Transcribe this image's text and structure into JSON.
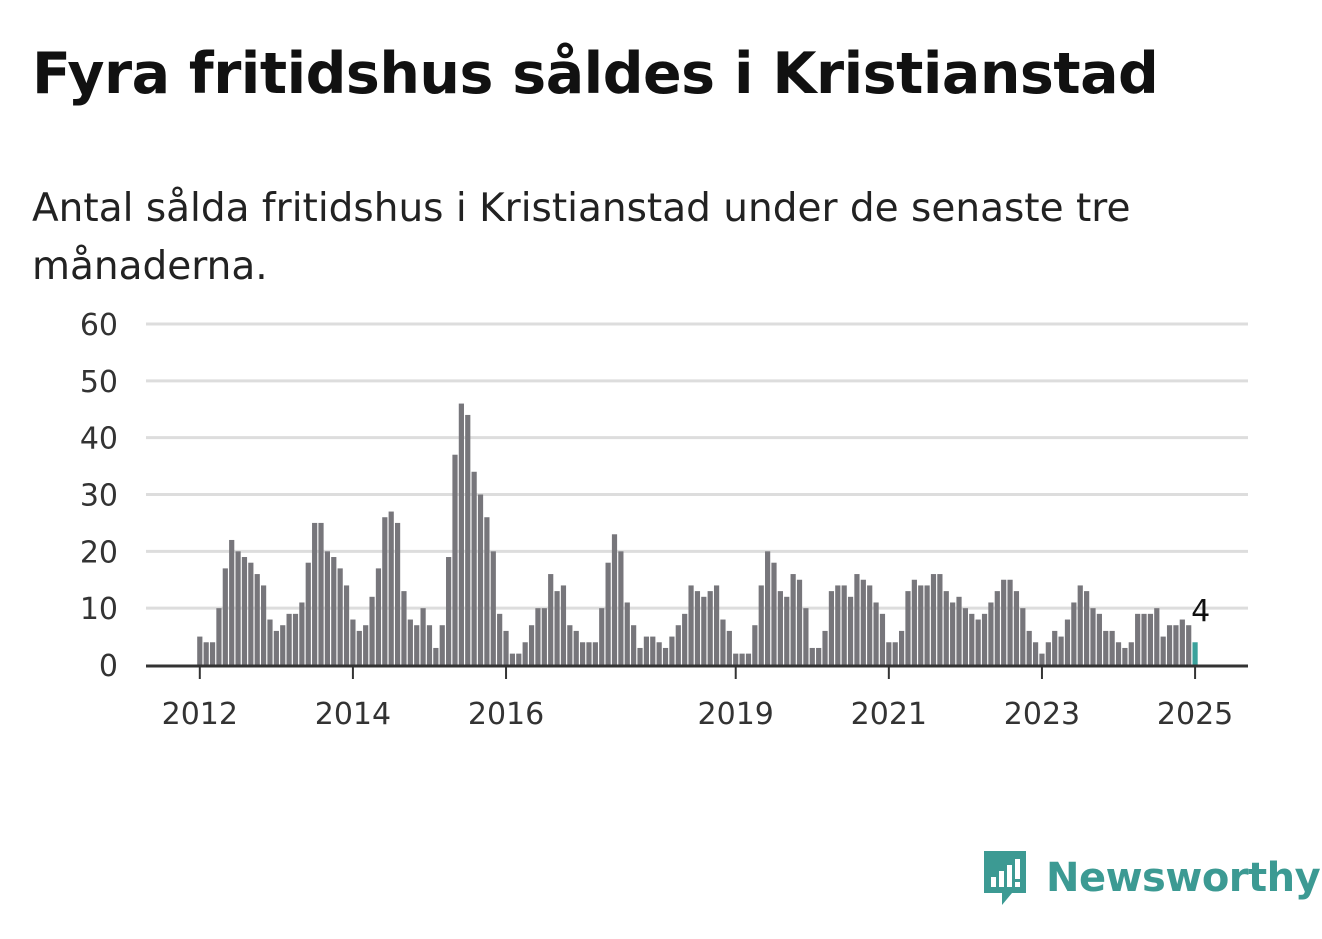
{
  "title": "Fyra fritidshus såldes i Kristianstad",
  "subtitle": "Antal sålda fritidshus i Kristianstad under de senaste tre månaderna.",
  "brand": {
    "name": "Newsworthy",
    "icon": "newsworthy-logo-icon",
    "color": "#3c9a93"
  },
  "colors": {
    "bar": "#77767b",
    "highlight": "#3aa19b",
    "grid": "#dddddd",
    "baseline": "#333333"
  },
  "chart_data": {
    "type": "bar",
    "title": "Fyra fritidshus såldes i Kristianstad",
    "subtitle": "Antal sålda fritidshus i Kristianstad under de senaste tre månaderna.",
    "xlabel": "",
    "ylabel": "",
    "ylim": [
      0,
      60
    ],
    "yticks": [
      0,
      10,
      20,
      30,
      40,
      50,
      60
    ],
    "grid": true,
    "x_ticks": [
      {
        "label": "2012",
        "date": "2012-01"
      },
      {
        "label": "2014",
        "date": "2014-01"
      },
      {
        "label": "2016",
        "date": "2016-01"
      },
      {
        "label": "2019",
        "date": "2019-01"
      },
      {
        "label": "2021",
        "date": "2021-01"
      },
      {
        "label": "2023",
        "date": "2023-01"
      },
      {
        "label": "2025",
        "date": "2025-01"
      }
    ],
    "categories": [
      "2012-01",
      "2012-02",
      "2012-03",
      "2012-04",
      "2012-05",
      "2012-06",
      "2012-07",
      "2012-08",
      "2012-09",
      "2012-10",
      "2012-11",
      "2012-12",
      "2013-01",
      "2013-02",
      "2013-03",
      "2013-04",
      "2013-05",
      "2013-06",
      "2013-07",
      "2013-08",
      "2013-09",
      "2013-10",
      "2013-11",
      "2013-12",
      "2014-01",
      "2014-02",
      "2014-03",
      "2014-04",
      "2014-05",
      "2014-06",
      "2014-07",
      "2014-08",
      "2014-09",
      "2014-10",
      "2014-11",
      "2014-12",
      "2015-01",
      "2015-02",
      "2015-03",
      "2015-04",
      "2015-05",
      "2015-06",
      "2015-07",
      "2015-08",
      "2015-09",
      "2015-10",
      "2015-11",
      "2015-12",
      "2016-01",
      "2016-02",
      "2016-03",
      "2016-04",
      "2016-05",
      "2016-06",
      "2016-07",
      "2016-08",
      "2016-09",
      "2016-10",
      "2016-11",
      "2016-12",
      "2017-01",
      "2017-02",
      "2017-03",
      "2017-04",
      "2017-05",
      "2017-06",
      "2017-07",
      "2017-08",
      "2017-09",
      "2017-10",
      "2017-11",
      "2017-12",
      "2018-01",
      "2018-02",
      "2018-03",
      "2018-04",
      "2018-05",
      "2018-06",
      "2018-07",
      "2018-08",
      "2018-09",
      "2018-10",
      "2018-11",
      "2018-12",
      "2019-01",
      "2019-02",
      "2019-03",
      "2019-04",
      "2019-05",
      "2019-06",
      "2019-07",
      "2019-08",
      "2019-09",
      "2019-10",
      "2019-11",
      "2019-12",
      "2020-01",
      "2020-02",
      "2020-03",
      "2020-04",
      "2020-05",
      "2020-06",
      "2020-07",
      "2020-08",
      "2020-09",
      "2020-10",
      "2020-11",
      "2020-12",
      "2021-01",
      "2021-02",
      "2021-03",
      "2021-04",
      "2021-05",
      "2021-06",
      "2021-07",
      "2021-08",
      "2021-09",
      "2021-10",
      "2021-11",
      "2021-12",
      "2022-01",
      "2022-02",
      "2022-03",
      "2022-04",
      "2022-05",
      "2022-06",
      "2022-07",
      "2022-08",
      "2022-09",
      "2022-10",
      "2022-11",
      "2022-12",
      "2023-01",
      "2023-02",
      "2023-03",
      "2023-04",
      "2023-05",
      "2023-06",
      "2023-07",
      "2023-08",
      "2023-09",
      "2023-10",
      "2023-11",
      "2023-12",
      "2024-01",
      "2024-02",
      "2024-03",
      "2024-04",
      "2024-05",
      "2024-06",
      "2024-07",
      "2024-08",
      "2024-09",
      "2024-10",
      "2024-11",
      "2024-12",
      "2025-01"
    ],
    "values": [
      5,
      4,
      4,
      10,
      17,
      22,
      20,
      19,
      18,
      16,
      14,
      8,
      6,
      7,
      9,
      9,
      11,
      18,
      25,
      25,
      20,
      19,
      17,
      14,
      8,
      6,
      7,
      12,
      17,
      26,
      27,
      25,
      13,
      8,
      7,
      10,
      7,
      3,
      7,
      19,
      37,
      46,
      44,
      34,
      30,
      26,
      20,
      9,
      6,
      2,
      2,
      4,
      7,
      10,
      10,
      16,
      13,
      14,
      7,
      6,
      4,
      4,
      4,
      10,
      18,
      23,
      20,
      11,
      7,
      3,
      5,
      5,
      4,
      3,
      5,
      7,
      9,
      14,
      13,
      12,
      13,
      14,
      8,
      6,
      2,
      2,
      2,
      7,
      14,
      20,
      18,
      13,
      12,
      16,
      15,
      10,
      3,
      3,
      6,
      13,
      14,
      14,
      12,
      16,
      15,
      14,
      11,
      9,
      4,
      4,
      6,
      13,
      15,
      14,
      14,
      16,
      16,
      13,
      11,
      12,
      10,
      9,
      8,
      9,
      11,
      13,
      15,
      15,
      13,
      10,
      6,
      4,
      2,
      4,
      6,
      5,
      8,
      11,
      14,
      13,
      10,
      9,
      6,
      6,
      4,
      3,
      4,
      9,
      9,
      9,
      10,
      5,
      7,
      7,
      8,
      7,
      4
    ],
    "highlight": {
      "date": "2025-01",
      "value": 4,
      "label": "4"
    }
  }
}
